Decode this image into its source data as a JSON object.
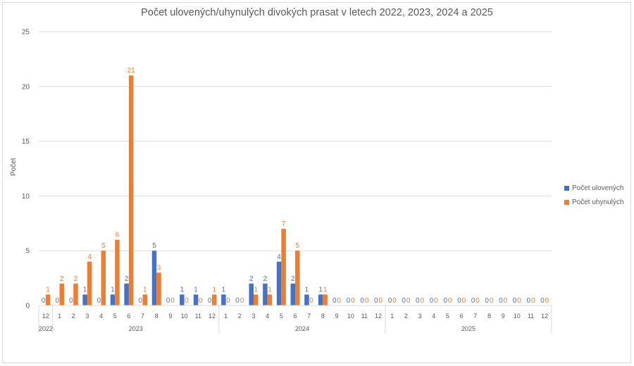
{
  "chart_data": {
    "type": "bar",
    "title": "Počet ulovených/uhynulých  divokých prasat v letech 2022, 2023, 2024 a 2025",
    "xlabel": "",
    "ylabel": "Počet",
    "ylim": [
      0,
      25
    ],
    "yticks": [
      0,
      5,
      10,
      15,
      20,
      25
    ],
    "grid": true,
    "legend_position": "right",
    "categories": [
      "12",
      "1",
      "2",
      "3",
      "4",
      "5",
      "6",
      "7",
      "8",
      "9",
      "10",
      "11",
      "12",
      "1",
      "2",
      "3",
      "4",
      "5",
      "6",
      "7",
      "8",
      "9",
      "10",
      "11",
      "12",
      "1",
      "2",
      "3",
      "4",
      "5",
      "6",
      "7",
      "8",
      "9",
      "10",
      "11",
      "12"
    ],
    "year_groups": [
      {
        "label": "2022",
        "start": 0,
        "count": 1
      },
      {
        "label": "2023",
        "start": 1,
        "count": 12
      },
      {
        "label": "2024",
        "start": 13,
        "count": 12
      },
      {
        "label": "2025",
        "start": 25,
        "count": 12
      }
    ],
    "series": [
      {
        "name": "Počet ulovených",
        "color": "#4472c4",
        "values": [
          0,
          0,
          0,
          1,
          0,
          1,
          2,
          0,
          5,
          0,
          1,
          1,
          0,
          1,
          0,
          2,
          2,
          4,
          2,
          1,
          1,
          0,
          0,
          0,
          0,
          0,
          0,
          0,
          0,
          0,
          0,
          0,
          0,
          0,
          0,
          0,
          0
        ]
      },
      {
        "name": "Počet uhynulých",
        "color": "#ed7d31",
        "values": [
          1,
          2,
          2,
          4,
          5,
          6,
          21,
          1,
          3,
          0,
          0,
          0,
          1,
          0,
          0,
          1,
          1,
          7,
          5,
          0,
          1,
          0,
          0,
          0,
          0,
          0,
          0,
          0,
          0,
          0,
          0,
          0,
          0,
          0,
          0,
          0,
          0
        ]
      }
    ]
  },
  "colors": {
    "grid": "#d9d9d9",
    "axis_text": "#595959",
    "blue": "#4472c4",
    "orange": "#ed7d31"
  }
}
